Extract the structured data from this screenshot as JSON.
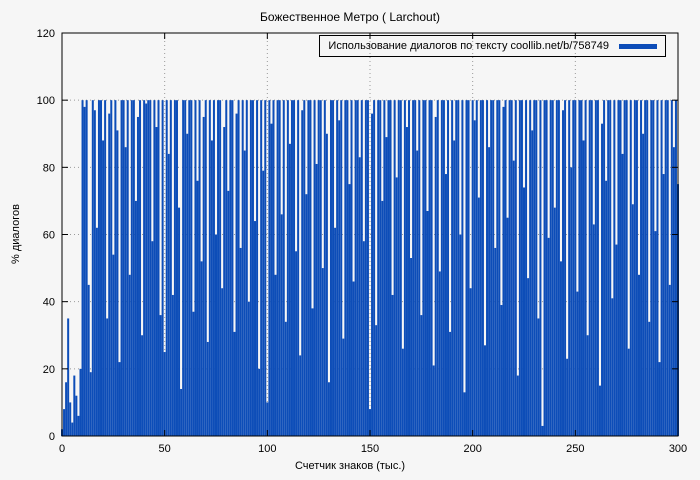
{
  "chart_data": {
    "type": "bar",
    "title": "Божественное Метро ( Larchout)",
    "legend_label": "Использование диалогов по тексту coollib.net/b/758749",
    "xlabel": "Счетчик знаков (тыс.)",
    "ylabel": "% диалогов",
    "xlim": [
      0,
      300
    ],
    "ylim": [
      0,
      120
    ],
    "xticks": [
      0,
      50,
      100,
      150,
      200,
      250,
      300
    ],
    "yticks": [
      0,
      20,
      40,
      60,
      80,
      100,
      120
    ],
    "grid": true,
    "legend_position": "top-right",
    "bar_color": "#0d4db8",
    "x_start": 0,
    "x_step": 1,
    "values": [
      2,
      8,
      16,
      35,
      10,
      4,
      18,
      12,
      6,
      20,
      100,
      98,
      100,
      45,
      19,
      100,
      97,
      62,
      100,
      100,
      88,
      100,
      35,
      96,
      100,
      54,
      100,
      91,
      22,
      100,
      100,
      86,
      100,
      48,
      100,
      100,
      70,
      95,
      100,
      30,
      100,
      99,
      100,
      100,
      58,
      100,
      92,
      100,
      36,
      100,
      25,
      100,
      84,
      100,
      42,
      100,
      100,
      68,
      14,
      100,
      100,
      90,
      100,
      100,
      37,
      100,
      76,
      100,
      52,
      95,
      100,
      28,
      100,
      88,
      100,
      60,
      100,
      100,
      44,
      92,
      100,
      73,
      100,
      100,
      31,
      96,
      100,
      56,
      100,
      85,
      100,
      40,
      100,
      100,
      64,
      100,
      20,
      100,
      79,
      100,
      10,
      100,
      93,
      100,
      48,
      100,
      100,
      66,
      100,
      34,
      100,
      87,
      100,
      100,
      55,
      100,
      24,
      97,
      100,
      72,
      100,
      100,
      38,
      100,
      81,
      100,
      100,
      50,
      100,
      90,
      16,
      100,
      100,
      62,
      100,
      94,
      100,
      29,
      100,
      100,
      75,
      100,
      46,
      100,
      100,
      83,
      100,
      58,
      100,
      100,
      8,
      96,
      100,
      33,
      100,
      100,
      70,
      100,
      89,
      100,
      100,
      42,
      100,
      77,
      100,
      100,
      26,
      100,
      92,
      100,
      53,
      100,
      100,
      85,
      100,
      36,
      100,
      100,
      67,
      100,
      100,
      21,
      95,
      100,
      49,
      100,
      100,
      78,
      100,
      31,
      100,
      88,
      100,
      100,
      60,
      100,
      13,
      100,
      100,
      44,
      100,
      94,
      100,
      71,
      100,
      100,
      27,
      100,
      86,
      100,
      100,
      56,
      100,
      100,
      39,
      98,
      100,
      65,
      100,
      100,
      82,
      100,
      18,
      100,
      100,
      74,
      100,
      47,
      100,
      91,
      100,
      100,
      35,
      100,
      3,
      100,
      100,
      59,
      100,
      100,
      68,
      100,
      100,
      52,
      97,
      100,
      23,
      100,
      80,
      100,
      100,
      43,
      100,
      100,
      88,
      100,
      30,
      100,
      100,
      63,
      100,
      100,
      15,
      93,
      100,
      76,
      100,
      100,
      41,
      100,
      57,
      100,
      100,
      84,
      100,
      100,
      26,
      100,
      69,
      100,
      100,
      48,
      100,
      90,
      100,
      100,
      34,
      100,
      100,
      61,
      100,
      22,
      100,
      78,
      100,
      100,
      45,
      100,
      86,
      100,
      75
    ]
  }
}
